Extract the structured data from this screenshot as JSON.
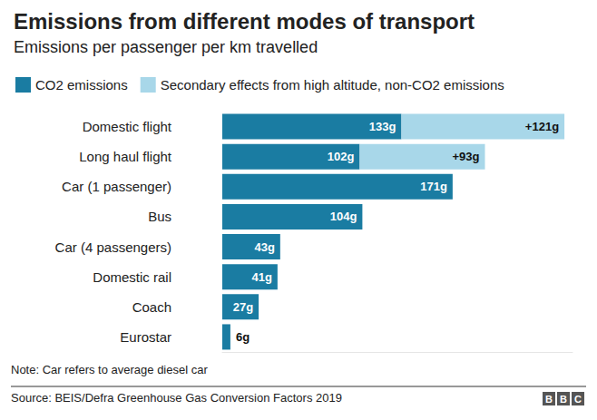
{
  "chart_data": {
    "type": "bar",
    "title": "Emissions from different modes of transport",
    "subtitle": "Emissions per passenger per km travelled",
    "orientation": "horizontal",
    "stacked": true,
    "data_labels": true,
    "tick_labels": "y",
    "grid": false,
    "legend": "top-left",
    "categories": [
      "Domestic flight",
      "Long haul flight",
      "Car (1 passenger)",
      "Bus",
      "Car (4 passengers)",
      "Domestic rail",
      "Coach",
      "Eurostar"
    ],
    "series": [
      {
        "name": "CO2 emissions",
        "color": "#1a7ca2",
        "values": [
          133,
          102,
          171,
          104,
          43,
          41,
          27,
          6
        ],
        "value_labels": [
          "133g",
          "102g",
          "171g",
          "104g",
          "43g",
          "41g",
          "27g",
          "6g"
        ]
      },
      {
        "name": "Secondary effects from high altitude, non-CO2 emissions",
        "color": "#a8d7e9",
        "values": [
          121,
          93,
          null,
          null,
          null,
          null,
          null,
          null
        ],
        "value_labels": [
          "+121g",
          "+93g",
          null,
          null,
          null,
          null,
          null,
          null
        ]
      }
    ],
    "xlim": [
      0,
      260
    ],
    "xticks": [],
    "note": "Note: Car refers to average diesel car",
    "source": "Source: BEIS/Defra Greenhouse Gas Conversion Factors 2019",
    "logo": "BBC"
  }
}
